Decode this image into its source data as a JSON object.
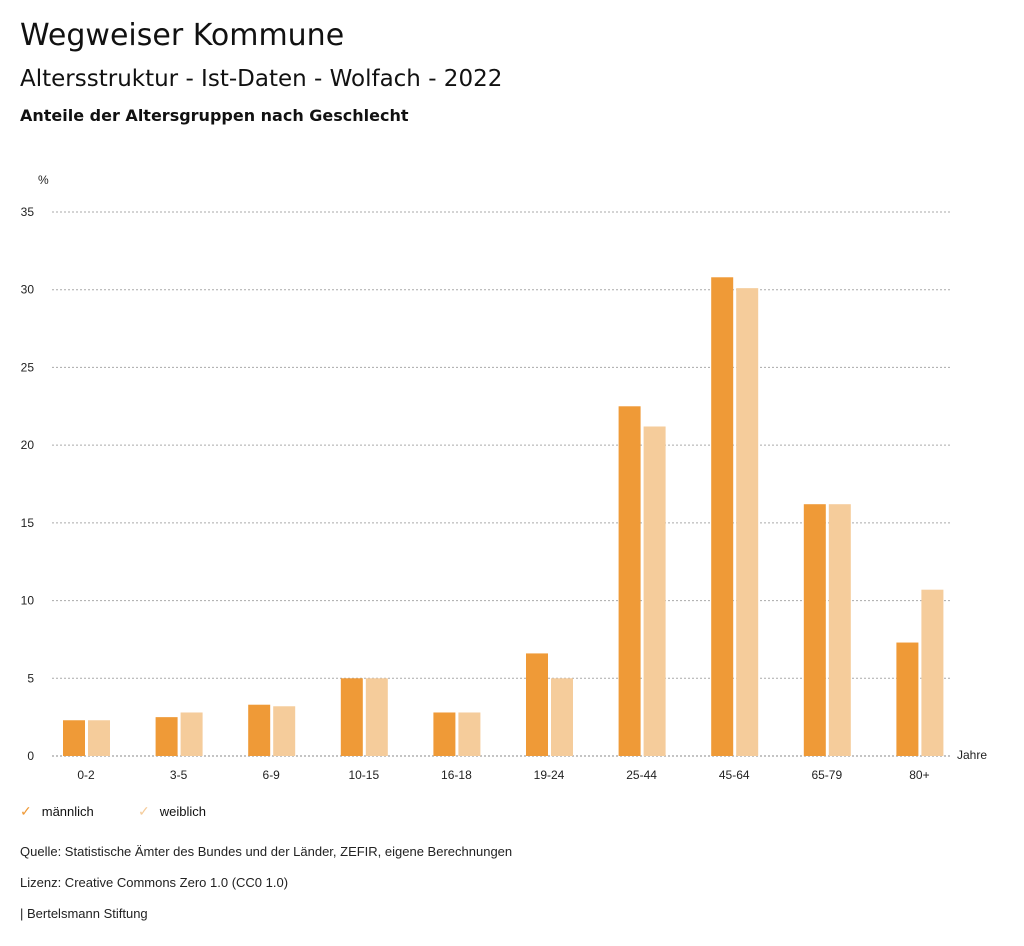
{
  "header": {
    "title": "Wegweiser Kommune",
    "subtitle": "Altersstruktur - Ist-Daten - Wolfach - 2022",
    "chart_title": "Anteile der Altersgruppen nach Geschlecht"
  },
  "chart_data": {
    "type": "bar",
    "title": "Anteile der Altersgruppen nach Geschlecht",
    "ylabel": "%",
    "xlabel": "Jahre",
    "ylim": [
      0,
      35
    ],
    "yticks": [
      0,
      5,
      10,
      15,
      20,
      25,
      30,
      35
    ],
    "grid": true,
    "legend": "bottom-left",
    "categories": [
      "0-2",
      "3-5",
      "6-9",
      "10-15",
      "16-18",
      "19-24",
      "25-44",
      "45-64",
      "65-79",
      "80+"
    ],
    "series": [
      {
        "name": "männlich",
        "color": "#ef9a37",
        "values": [
          2.3,
          2.5,
          3.3,
          5.0,
          2.8,
          6.6,
          22.5,
          30.8,
          16.2,
          7.3
        ]
      },
      {
        "name": "weiblich",
        "color": "#f5cc9b",
        "values": [
          2.3,
          2.8,
          3.2,
          5.0,
          2.8,
          5.0,
          21.2,
          30.1,
          16.2,
          10.7
        ]
      }
    ]
  },
  "footer": {
    "source": "Quelle: Statistische Ämter des Bundes und der Länder, ZEFIR, eigene Berechnungen",
    "license": "Lizenz: Creative Commons Zero 1.0 (CC0 1.0)",
    "brand": "| Bertelsmann Stiftung"
  }
}
